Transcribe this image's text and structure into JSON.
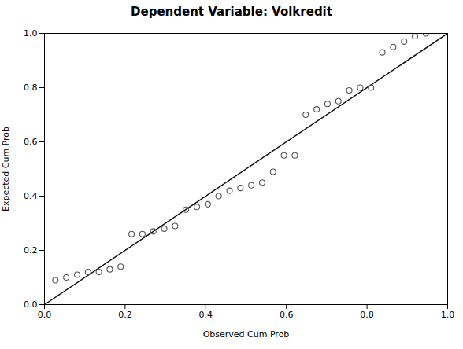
{
  "chart_data": {
    "type": "scatter",
    "title": "Dependent Variable: Volkredit",
    "xlabel": "Observed Cum Prob",
    "ylabel": "Expected Cum Prob",
    "xlim": [
      0.0,
      1.0
    ],
    "ylim": [
      0.0,
      1.0
    ],
    "xticks": [
      {
        "value": 0.0,
        "label": "0.0"
      },
      0.2,
      0.4,
      0.6,
      0.8,
      {
        "value": 1.0,
        "label": "1.0"
      }
    ],
    "yticks": [
      {
        "value": 0.0,
        "label": "0.0"
      },
      0.2,
      0.4,
      0.6,
      0.8,
      {
        "value": 1.0,
        "label": "1.0"
      }
    ],
    "grid": false,
    "series": [
      {
        "type": "line",
        "color": "#111111",
        "x": [
          0,
          1
        ],
        "values": [
          0,
          1
        ]
      },
      {
        "type": "scatter",
        "color": "#555555",
        "marker": "circle",
        "x": [
          0.027,
          0.054,
          0.081,
          0.108,
          0.135,
          0.162,
          0.189,
          0.216,
          0.243,
          0.27,
          0.297,
          0.324,
          0.351,
          0.378,
          0.405,
          0.432,
          0.459,
          0.486,
          0.513,
          0.54,
          0.567,
          0.594,
          0.621,
          0.648,
          0.675,
          0.702,
          0.729,
          0.756,
          0.783,
          0.81,
          0.838,
          0.865,
          0.892,
          0.919,
          0.946
        ],
        "values": [
          0.09,
          0.1,
          0.11,
          0.12,
          0.12,
          0.13,
          0.14,
          0.26,
          0.26,
          0.27,
          0.28,
          0.29,
          0.35,
          0.36,
          0.37,
          0.4,
          0.42,
          0.43,
          0.44,
          0.45,
          0.49,
          0.55,
          0.55,
          0.7,
          0.72,
          0.74,
          0.75,
          0.79,
          0.8,
          0.8,
          0.93,
          0.95,
          0.97,
          0.99,
          1.0
        ]
      }
    ]
  }
}
